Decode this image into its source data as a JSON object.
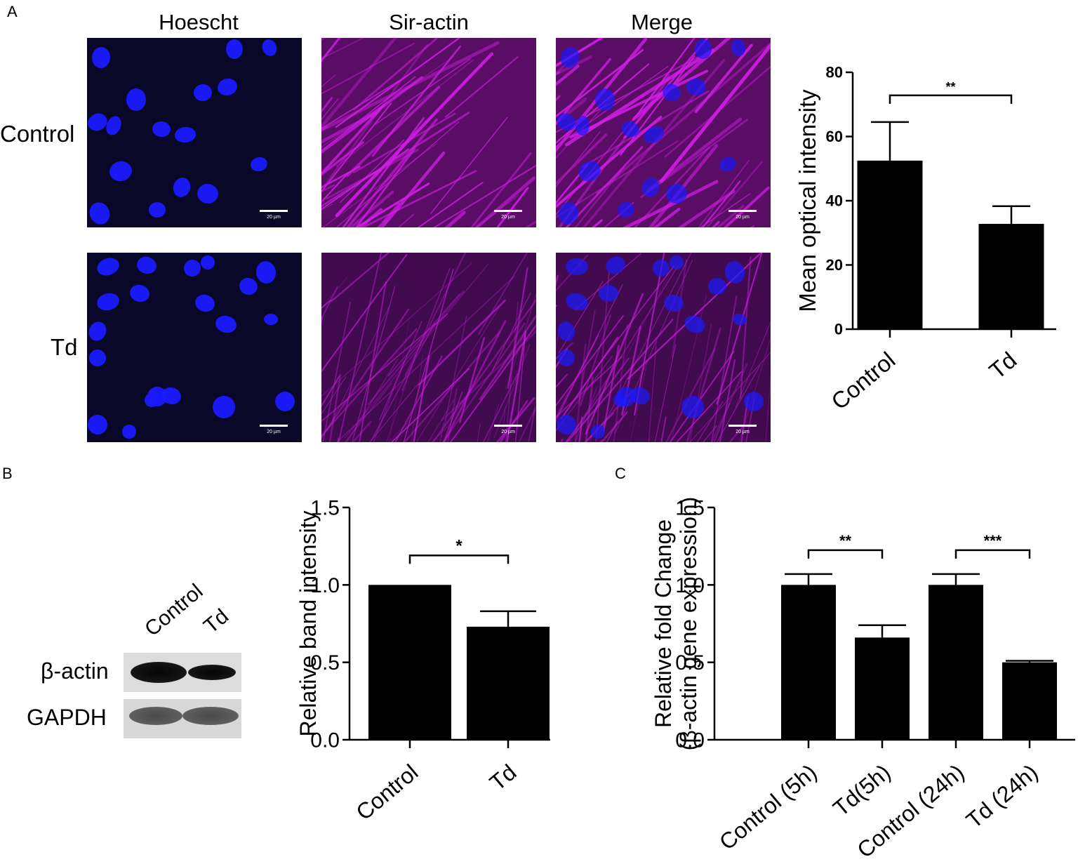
{
  "panel_labels": {
    "a": "A",
    "b": "B",
    "c": "C"
  },
  "panel_a": {
    "column_headers": [
      "Hoescht",
      "Sir-actin",
      "Merge"
    ],
    "row_headers": [
      "Control",
      "Td"
    ],
    "scale_bars": [
      "20 µm",
      "20 µm",
      "20 µm",
      "20 µm",
      "20 µm",
      "20 µm"
    ],
    "colors": {
      "nucleus": "#1a1aff",
      "actin": "#d21ee6",
      "background": "#0a0828"
    }
  },
  "western_blot": {
    "lanes": [
      "Control",
      "Td"
    ],
    "bands": [
      "β-actin",
      "GAPDH"
    ]
  },
  "chart_data": [
    {
      "id": "mean-optical-intensity",
      "type": "bar",
      "categories": [
        "Control",
        "Td"
      ],
      "values": [
        52.5,
        32.8
      ],
      "errors": [
        12.0,
        5.5
      ],
      "ylabel": "Mean  optical intensity",
      "ylim": [
        0,
        80
      ],
      "yticks": [
        "0",
        "20",
        "40",
        "60",
        "80"
      ],
      "significance": [
        {
          "between": [
            0,
            1
          ],
          "label": "**"
        }
      ],
      "bar_color": "#000000",
      "grid": false
    },
    {
      "id": "relative-band-intensity",
      "type": "bar",
      "categories": [
        "Control",
        "Td"
      ],
      "values": [
        1.0,
        0.73
      ],
      "errors": [
        0.0,
        0.1
      ],
      "ylabel": "Relative band intensity",
      "ylim": [
        0,
        1.5
      ],
      "yticks": [
        "0.0",
        "0.5",
        "1.0",
        "1.5"
      ],
      "significance": [
        {
          "between": [
            0,
            1
          ],
          "label": "*"
        }
      ],
      "bar_color": "#000000",
      "grid": false
    },
    {
      "id": "relative-fold-change",
      "type": "bar",
      "categories": [
        "Control (5h)",
        "Td(5h)",
        "Control (24h)",
        "Td (24h)"
      ],
      "values": [
        1.0,
        0.66,
        1.0,
        0.5
      ],
      "errors": [
        0.07,
        0.08,
        0.07,
        0.01
      ],
      "ylabel": "Relative fold Change",
      "ylabel2": "(β-actin gene expression)",
      "ylim": [
        0,
        1.5
      ],
      "yticks": [
        "0.0",
        "0.5",
        "1.0",
        "1.5"
      ],
      "significance": [
        {
          "between": [
            0,
            1
          ],
          "label": "**"
        },
        {
          "between": [
            2,
            3
          ],
          "label": "***"
        }
      ],
      "bar_color": "#000000",
      "grid": false
    }
  ]
}
